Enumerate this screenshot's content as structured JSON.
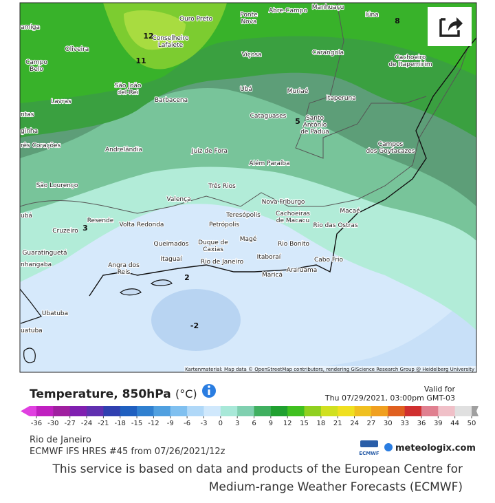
{
  "map": {
    "cities": [
      [
        "Ouro Preto"
      ],
      [
        "Ponte",
        "Nova"
      ],
      [
        "Abre-Campo"
      ],
      [
        "Manhuaçu"
      ],
      [
        "Iúna"
      ],
      [
        "Conselheiro",
        "Lafaiete"
      ],
      [
        "amiga"
      ],
      [
        "Oliveira"
      ],
      [
        "Viçosa"
      ],
      [
        "Carangola"
      ],
      [
        "Cachoeiro",
        "de Itapemirim"
      ],
      [
        "Campo",
        "Belo"
      ],
      [
        "São João",
        "del-Rei"
      ],
      [
        "Ubá"
      ],
      [
        "Muriaé"
      ],
      [
        "Lavras"
      ],
      [
        "Barbacena"
      ],
      [
        "Itaperuna"
      ],
      [
        "Cataguases"
      ],
      [
        "Santo",
        "Antônio",
        "de Pádua"
      ],
      [
        "ntas"
      ],
      [
        "ginha"
      ],
      [
        "rês Corações"
      ],
      [
        "Campos",
        "dos Goytacazes"
      ],
      [
        "Andrelândia"
      ],
      [
        "Juiz de Fora"
      ],
      [
        "Além Paraíba"
      ],
      [
        "São Lourenço"
      ],
      [
        "Três Rios"
      ],
      [
        "Valença"
      ],
      [
        "Nova Friburgo"
      ],
      [
        "ubá"
      ],
      [
        "Teresópolis"
      ],
      [
        "Cachoeiras",
        "de Macacu"
      ],
      [
        "Resende"
      ],
      [
        "Volta Redonda"
      ],
      [
        "Macaé"
      ],
      [
        "Petrópolis"
      ],
      [
        "Rio das Ostras"
      ],
      [
        "Cruzeiro"
      ],
      [
        "Magé"
      ],
      [
        "Duque de",
        "Caxias"
      ],
      [
        "Queimados"
      ],
      [
        "Rio Bonito"
      ],
      [
        "Guaratinguetá"
      ],
      [
        "Itaboraí"
      ],
      [
        "Itaguaí"
      ],
      [
        "Cabo Frio"
      ],
      [
        "Rio de Janeiro"
      ],
      [
        "nhangaba"
      ],
      [
        "Angra dos",
        "Reis"
      ],
      [
        "Araruama"
      ],
      [
        "Maricá"
      ],
      [
        "Ubatuba"
      ],
      [
        "uatuba"
      ]
    ],
    "contour_labels": [
      12,
      11,
      8,
      5,
      3,
      2,
      -2
    ],
    "attribution": "Kartenmaterial: Map data © OpenStreetMap contributors, rendering GIScience Research Group @ Heidelberg University"
  },
  "legend": {
    "title": "Temperature, 850hPa",
    "unit": "(°C)",
    "valid_label": "Valid for",
    "valid_time": "Thu 07/29/2021, 03:00pm GMT-03",
    "colorbar": {
      "ticks": [
        -36,
        -30,
        -27,
        -24,
        -21,
        -18,
        -15,
        -12,
        -9,
        -6,
        -3,
        0,
        3,
        6,
        9,
        12,
        15,
        18,
        21,
        24,
        27,
        30,
        33,
        36,
        39,
        44,
        50
      ],
      "colors": [
        "#e040e0",
        "#c020c0",
        "#a020a0",
        "#8020b0",
        "#6030b0",
        "#3040b0",
        "#2060c0",
        "#3080d0",
        "#50a0e0",
        "#80c0f0",
        "#b0d8f8",
        "#d0e8fc",
        "#a8e8d8",
        "#80d0b0",
        "#40b060",
        "#20a030",
        "#40c020",
        "#90d020",
        "#d0e020",
        "#f0e020",
        "#f0c020",
        "#f0a020",
        "#e06020",
        "#d03030",
        "#e08090",
        "#f0c0c8",
        "#e0e0e0",
        "#a0a0a0"
      ]
    }
  },
  "info": {
    "location": "Rio de Janeiro",
    "model": "ECMWF IFS HRES #45 from 07/26/2021/12z",
    "logo_ecmwf": "ECMWF",
    "logo_brand": "meteologix.com"
  },
  "disclaimer": [
    "This service is based on data and products of the European Centre for",
    "Medium-range Weather Forecasts (ECMWF)"
  ]
}
